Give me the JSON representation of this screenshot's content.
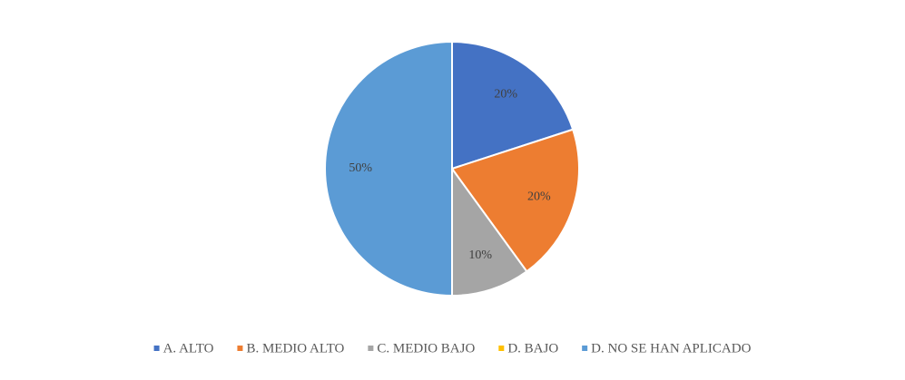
{
  "chart_data": {
    "type": "pie",
    "categories": [
      "A. ALTO",
      "B. MEDIO ALTO",
      "C. MEDIO BAJO",
      "D. BAJO",
      "D. NO SE HAN APLICADO"
    ],
    "values": [
      20,
      20,
      10,
      0,
      50
    ],
    "value_labels": [
      "20%",
      "20%",
      "10%",
      null,
      "50%"
    ],
    "colors": [
      "#4472c4",
      "#ed7d31",
      "#a5a5a5",
      "#ffc000",
      "#5b9bd5"
    ],
    "legend": "bottom"
  }
}
